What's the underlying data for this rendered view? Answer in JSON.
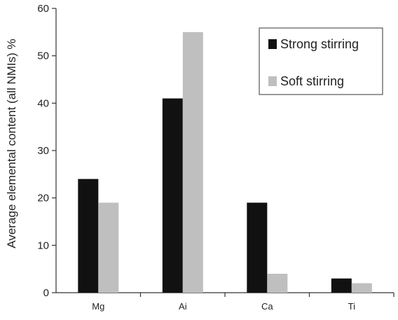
{
  "chart_data": {
    "type": "bar",
    "title": "",
    "xlabel": "",
    "ylabel": "Average elemental content (all NMIs) %",
    "categories": [
      "Mg",
      "Ai",
      "Ca",
      "Ti"
    ],
    "series": [
      {
        "name": "Strong stirring",
        "values": [
          24,
          41,
          19,
          3
        ],
        "color": "#111111"
      },
      {
        "name": "Soft stirring",
        "values": [
          19,
          55,
          4,
          2
        ],
        "color": "#bfbfbf"
      }
    ],
    "ylim": [
      0,
      60
    ],
    "yticks": [
      0,
      10,
      20,
      30,
      40,
      50,
      60
    ],
    "grid": false,
    "legend_position": "top-right"
  }
}
